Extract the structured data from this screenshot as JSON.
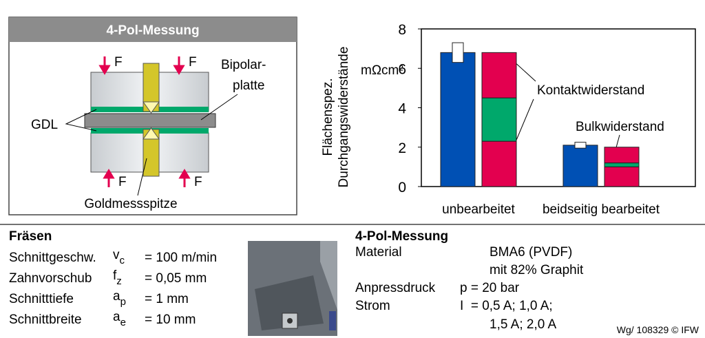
{
  "diagram": {
    "title": "4-Pol-Messung",
    "force_label": "F",
    "plate_label_1": "Bipolar-",
    "plate_label_2": "platte",
    "gdl_label": "GDL",
    "probe_label": "Goldmessspitze"
  },
  "chart_data": {
    "type": "bar",
    "categories": [
      "unbearbeitet",
      "beidseitig bearbeitet"
    ],
    "y_label_1": "Flächenspez.",
    "y_label_2": "Durchgangswiderstände",
    "unit": "mΩcm²",
    "series": [
      {
        "color": "#0050b4",
        "values": [
          6.8,
          2.1
        ],
        "errors": [
          0.5,
          0.15
        ]
      },
      {
        "color": "#e3004f",
        "values": [
          2.3,
          1.0
        ],
        "stacked": true
      },
      {
        "color": "#00a86b",
        "values": [
          2.2,
          0.2
        ],
        "stacked": true
      },
      {
        "color": "#e3004f",
        "values": [
          2.3,
          0.8
        ],
        "stacked": true
      }
    ],
    "annotations": [
      "Kontaktwiderstand",
      "Bulkwiderstand"
    ],
    "ylim": [
      0,
      8
    ],
    "yticks": [
      0,
      2,
      4,
      6,
      8
    ]
  },
  "milling": {
    "title": "Fräsen",
    "rows": [
      {
        "label": "Schnittgeschw.",
        "symbol": "v",
        "sub": "c",
        "value": "= 100 m/min"
      },
      {
        "label": "Zahnvorschub",
        "symbol": "f",
        "sub": "z",
        "value": "= 0,05 mm"
      },
      {
        "label": "Schnitttiefe",
        "symbol": "a",
        "sub": "p",
        "value": "= 1 mm"
      },
      {
        "label": "Schnittbreite",
        "symbol": "a",
        "sub": "e",
        "value": "= 10 mm"
      }
    ]
  },
  "measurement": {
    "title": "4-Pol-Messung",
    "material_label": "Material",
    "material_1": "BMA6 (PVDF)",
    "material_2": "mit 82% Graphit",
    "pressure_label": "Anpressdruck",
    "pressure": "p = 20 bar",
    "current_label": "Strom",
    "current_1": "I  = 0,5 A; 1,0 A;",
    "current_2": "1,5 A; 2,0 A"
  },
  "footer": "Wg/ 108329 © IFW"
}
